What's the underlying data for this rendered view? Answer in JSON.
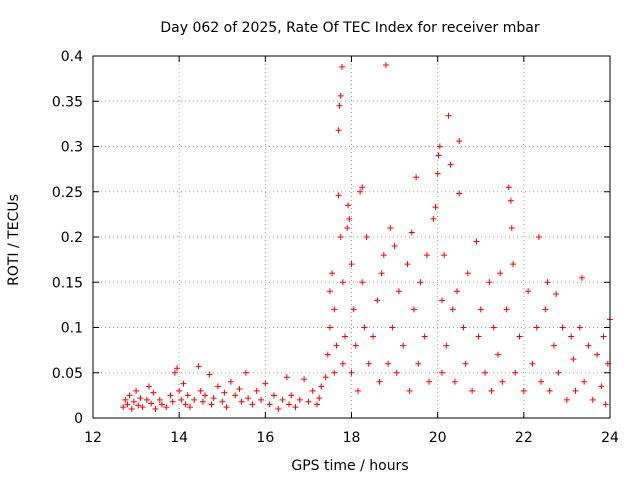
{
  "chart_data": {
    "type": "scatter",
    "title": "Day 062 of 2025, Rate Of TEC Index for receiver mbar",
    "xlabel": "GPS time / hours",
    "ylabel": "ROTI / TECUs",
    "xlim": [
      12,
      24
    ],
    "ylim": [
      0,
      0.4
    ],
    "x_ticks": [
      12,
      14,
      16,
      18,
      20,
      22,
      24
    ],
    "x_tick_labels": [
      "12",
      "14",
      "16",
      "18",
      "20",
      "22",
      "24"
    ],
    "y_ticks": [
      0,
      0.05,
      0.1,
      0.15,
      0.2,
      0.25,
      0.3,
      0.35,
      0.4
    ],
    "y_tick_labels": [
      "0",
      "0.05",
      "0.1",
      "0.15",
      "0.2",
      "0.25",
      "0.3",
      "0.35",
      "0.4"
    ],
    "grid": true,
    "marker": "+",
    "color": "#ff0000",
    "series": [
      {
        "name": "ROTI",
        "points": [
          [
            12.7,
            0.012
          ],
          [
            12.75,
            0.02
          ],
          [
            12.8,
            0.015
          ],
          [
            12.85,
            0.025
          ],
          [
            12.9,
            0.01
          ],
          [
            12.95,
            0.018
          ],
          [
            13.0,
            0.03
          ],
          [
            13.05,
            0.014
          ],
          [
            13.1,
            0.022
          ],
          [
            13.15,
            0.012
          ],
          [
            13.25,
            0.02
          ],
          [
            13.3,
            0.035
          ],
          [
            13.35,
            0.016
          ],
          [
            13.4,
            0.028
          ],
          [
            13.45,
            0.01
          ],
          [
            13.55,
            0.02
          ],
          [
            13.6,
            0.015
          ],
          [
            13.7,
            0.012
          ],
          [
            13.8,
            0.025
          ],
          [
            13.85,
            0.018
          ],
          [
            13.9,
            0.05
          ],
          [
            13.95,
            0.055
          ],
          [
            14.0,
            0.03
          ],
          [
            14.05,
            0.02
          ],
          [
            14.1,
            0.038
          ],
          [
            14.15,
            0.015
          ],
          [
            14.2,
            0.025
          ],
          [
            14.25,
            0.012
          ],
          [
            14.35,
            0.02
          ],
          [
            14.45,
            0.057
          ],
          [
            14.5,
            0.03
          ],
          [
            14.55,
            0.018
          ],
          [
            14.6,
            0.025
          ],
          [
            14.7,
            0.048
          ],
          [
            14.75,
            0.015
          ],
          [
            14.8,
            0.022
          ],
          [
            14.9,
            0.035
          ],
          [
            15.0,
            0.018
          ],
          [
            15.05,
            0.028
          ],
          [
            15.1,
            0.012
          ],
          [
            15.2,
            0.04
          ],
          [
            15.3,
            0.025
          ],
          [
            15.4,
            0.032
          ],
          [
            15.45,
            0.018
          ],
          [
            15.55,
            0.05
          ],
          [
            15.6,
            0.022
          ],
          [
            15.7,
            0.015
          ],
          [
            15.8,
            0.03
          ],
          [
            15.9,
            0.02
          ],
          [
            16.0,
            0.038
          ],
          [
            16.1,
            0.015
          ],
          [
            16.2,
            0.025
          ],
          [
            16.3,
            0.01
          ],
          [
            16.4,
            0.02
          ],
          [
            16.5,
            0.045
          ],
          [
            16.55,
            0.015
          ],
          [
            16.6,
            0.025
          ],
          [
            16.7,
            0.012
          ],
          [
            16.8,
            0.02
          ],
          [
            16.9,
            0.043
          ],
          [
            17.0,
            0.018
          ],
          [
            17.1,
            0.03
          ],
          [
            17.2,
            0.015
          ],
          [
            17.25,
            0.022
          ],
          [
            17.3,
            0.035
          ],
          [
            17.4,
            0.045
          ],
          [
            17.45,
            0.07
          ],
          [
            17.5,
            0.1
          ],
          [
            17.5,
            0.14
          ],
          [
            17.55,
            0.16
          ],
          [
            17.6,
            0.12
          ],
          [
            17.6,
            0.05
          ],
          [
            17.65,
            0.08
          ],
          [
            17.7,
            0.318
          ],
          [
            17.72,
            0.345
          ],
          [
            17.75,
            0.356
          ],
          [
            17.78,
            0.388
          ],
          [
            17.7,
            0.246
          ],
          [
            17.75,
            0.2
          ],
          [
            17.8,
            0.15
          ],
          [
            17.8,
            0.06
          ],
          [
            17.85,
            0.09
          ],
          [
            17.9,
            0.21
          ],
          [
            17.92,
            0.235
          ],
          [
            17.95,
            0.22
          ],
          [
            18.0,
            0.17
          ],
          [
            18.0,
            0.05
          ],
          [
            18.05,
            0.12
          ],
          [
            18.1,
            0.08
          ],
          [
            18.15,
            0.03
          ],
          [
            18.2,
            0.25
          ],
          [
            18.25,
            0.255
          ],
          [
            18.25,
            0.15
          ],
          [
            18.3,
            0.1
          ],
          [
            18.35,
            0.2
          ],
          [
            18.4,
            0.06
          ],
          [
            18.5,
            0.09
          ],
          [
            18.6,
            0.13
          ],
          [
            18.65,
            0.04
          ],
          [
            18.7,
            0.16
          ],
          [
            18.75,
            0.18
          ],
          [
            18.8,
            0.39
          ],
          [
            18.85,
            0.06
          ],
          [
            18.9,
            0.21
          ],
          [
            18.95,
            0.1
          ],
          [
            19.0,
            0.19
          ],
          [
            19.05,
            0.05
          ],
          [
            19.1,
            0.14
          ],
          [
            19.2,
            0.08
          ],
          [
            19.3,
            0.17
          ],
          [
            19.35,
            0.03
          ],
          [
            19.4,
            0.205
          ],
          [
            19.45,
            0.12
          ],
          [
            19.5,
            0.266
          ],
          [
            19.55,
            0.06
          ],
          [
            19.6,
            0.15
          ],
          [
            19.7,
            0.09
          ],
          [
            19.75,
            0.18
          ],
          [
            19.8,
            0.04
          ],
          [
            19.9,
            0.22
          ],
          [
            19.95,
            0.233
          ],
          [
            20.0,
            0.27
          ],
          [
            20.02,
            0.29
          ],
          [
            20.05,
            0.3
          ],
          [
            20.1,
            0.13
          ],
          [
            20.1,
            0.05
          ],
          [
            20.15,
            0.18
          ],
          [
            20.2,
            0.08
          ],
          [
            20.25,
            0.334
          ],
          [
            20.3,
            0.28
          ],
          [
            20.35,
            0.12
          ],
          [
            20.4,
            0.04
          ],
          [
            20.45,
            0.14
          ],
          [
            20.5,
            0.306
          ],
          [
            20.5,
            0.248
          ],
          [
            20.6,
            0.1
          ],
          [
            20.65,
            0.06
          ],
          [
            20.7,
            0.16
          ],
          [
            20.8,
            0.03
          ],
          [
            20.9,
            0.195
          ],
          [
            20.95,
            0.09
          ],
          [
            21.0,
            0.12
          ],
          [
            21.1,
            0.05
          ],
          [
            21.2,
            0.15
          ],
          [
            21.25,
            0.03
          ],
          [
            21.3,
            0.1
          ],
          [
            21.4,
            0.07
          ],
          [
            21.45,
            0.16
          ],
          [
            21.5,
            0.04
          ],
          [
            21.6,
            0.12
          ],
          [
            21.65,
            0.255
          ],
          [
            21.7,
            0.24
          ],
          [
            21.72,
            0.21
          ],
          [
            21.75,
            0.17
          ],
          [
            21.8,
            0.05
          ],
          [
            21.9,
            0.09
          ],
          [
            22.0,
            0.03
          ],
          [
            22.1,
            0.14
          ],
          [
            22.2,
            0.06
          ],
          [
            22.3,
            0.1
          ],
          [
            22.35,
            0.2
          ],
          [
            22.4,
            0.04
          ],
          [
            22.5,
            0.12
          ],
          [
            22.55,
            0.15
          ],
          [
            22.6,
            0.03
          ],
          [
            22.7,
            0.08
          ],
          [
            22.75,
            0.137
          ],
          [
            22.8,
            0.05
          ],
          [
            22.9,
            0.1
          ],
          [
            23.0,
            0.02
          ],
          [
            23.1,
            0.09
          ],
          [
            23.15,
            0.065
          ],
          [
            23.2,
            0.03
          ],
          [
            23.3,
            0.1
          ],
          [
            23.35,
            0.155
          ],
          [
            23.4,
            0.04
          ],
          [
            23.5,
            0.08
          ],
          [
            23.6,
            0.02
          ],
          [
            23.7,
            0.07
          ],
          [
            23.8,
            0.035
          ],
          [
            23.85,
            0.09
          ],
          [
            23.9,
            0.015
          ],
          [
            23.95,
            0.06
          ],
          [
            24.0,
            0.109
          ]
        ]
      }
    ]
  }
}
